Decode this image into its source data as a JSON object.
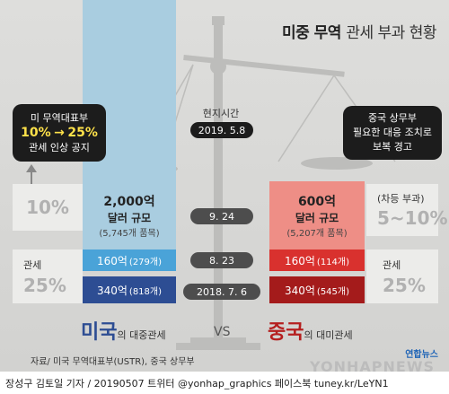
{
  "title": {
    "bold": "미중 무역",
    "light": "관세 부과 현황"
  },
  "us": {
    "name": "미국",
    "suffix": "의 대중관세",
    "top_amount": "2,000억",
    "top_scale": "달러 규모",
    "top_items": "(5,745개 품목)",
    "seg160": "160억",
    "seg160_items": "(279개)",
    "seg340": "340억",
    "seg340_items": "(818개)"
  },
  "cn": {
    "name": "중국",
    "suffix": "의 대미관세",
    "top_amount": "600억",
    "top_scale": "달러 규모",
    "top_items": "(5,207개 품목)",
    "seg160": "160억",
    "seg160_items": "(114개)",
    "seg340": "340억",
    "seg340_items": "(545개)"
  },
  "local_time_label": "현지시간",
  "dates": {
    "d1": "2019. 5.8",
    "d2": "9. 24",
    "d3": "8. 23",
    "d4": "2018. 7. 6"
  },
  "left_callout": {
    "line1": "미 무역대표부",
    "from": "10%",
    "arrow": "→",
    "to": "25%",
    "line3": "관세 인상 공지"
  },
  "right_callout": {
    "line1": "중국 상무부",
    "line2": "필요한 대응 조치로",
    "line3": "보복 경고"
  },
  "left_pct_top": "10%",
  "left_tariff_label": "관세",
  "left_pct_bottom": "25%",
  "right_note": "(차등 부과)",
  "right_pct_top": "5~10%",
  "right_tariff_label": "관세",
  "right_pct_bottom": "25%",
  "vs": "VS",
  "source": "자료/ 미국 무역대표부(USTR), 중국 상무부",
  "logo": "연합뉴스",
  "watermark": "YONHAPNEWS",
  "footer": "장성구 김토일 기자 / 20190507   트위터 @yonhap_graphics  페이스북 tuney.kr/LeYN1",
  "colors": {
    "us_light": "#a9cde0",
    "us_mid": "#4aa3d8",
    "us_dark": "#2d4d93",
    "cn_light": "#ee8e86",
    "cn_mid": "#d9312e",
    "cn_dark": "#a41b1b"
  }
}
